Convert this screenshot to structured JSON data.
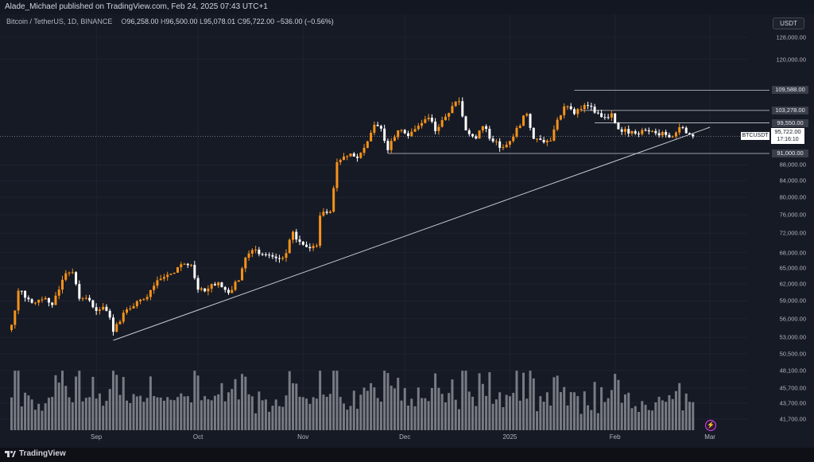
{
  "header": {
    "published_line": "Alade_Michael published on TradingView.com, Feb 24, 2025 07:43 UTC+1"
  },
  "quote": {
    "symbol_line": "Bitcoin / TetherUS, 1D, BINANCE",
    "open_label": "O",
    "open": "96,258.00",
    "high_label": "H",
    "high": "96,500.00",
    "low_label": "L",
    "low": "95,078.01",
    "close_label": "C",
    "close": "95,722.00",
    "change": "−536.00 (−0.56%)"
  },
  "currency_button": "USDT",
  "price_label": {
    "symbol": "BTCUSDT",
    "price": "95,722.00",
    "countdown": "17:16:10"
  },
  "footer": {
    "brand": "TradingView"
  },
  "colors": {
    "background": "#161a25",
    "bull_candle": "#f7931a",
    "bear_candle": "#ffffff",
    "trendline": "#c8cad0",
    "volume_bar": "#9a9ca3",
    "alert": "#e040fb"
  },
  "icons": {
    "logo": "tradingview-logo-icon",
    "alert": "lightning-alert-icon"
  },
  "chart_data": {
    "type": "candlestick",
    "symbol": "BTCUSDT",
    "timeframe": "1D",
    "price_axis": {
      "ticks": [
        41700,
        43700,
        45700,
        48100,
        50500,
        53000,
        56000,
        59000,
        62000,
        65000,
        68000,
        72000,
        76000,
        80000,
        84000,
        88000,
        120000,
        128000
      ],
      "tick_labels": [
        "41,700.00",
        "43,700.00",
        "45,700.00",
        "48,100.00",
        "50,500.00",
        "53,000.00",
        "56,000.00",
        "59,000.00",
        "62,000.00",
        "65,000.00",
        "68,000.00",
        "72,000.00",
        "76,000.00",
        "80,000.00",
        "84,000.00",
        "88,000.00",
        "120,000.00",
        "128,000.00"
      ],
      "log_scale": true,
      "range": [
        40300,
        136000
      ]
    },
    "time_axis": {
      "labels": [
        "Sep",
        "Oct",
        "Nov",
        "Dec",
        "2025",
        "Feb",
        "Mar"
      ],
      "label_dates": [
        "2024-09-01",
        "2024-10-01",
        "2024-11-01",
        "2024-12-01",
        "2025-01-01",
        "2025-02-01",
        "2025-03-01"
      ],
      "range": [
        "2024-08-05",
        "2025-03-12"
      ]
    },
    "grid": true,
    "horizontal_levels": [
      {
        "value": 109588,
        "label": "109,588.00",
        "from": "2025-01-20"
      },
      {
        "value": 103278,
        "label": "103,278.00",
        "from": "2025-01-22"
      },
      {
        "value": 99550,
        "label": "99,550.00",
        "from": "2025-01-26"
      },
      {
        "value": 91000,
        "label": "91,000.00",
        "from": "2024-11-26"
      }
    ],
    "last_price_line": 95722,
    "trendline": {
      "points": [
        [
          "2024-09-06",
          52550
        ],
        [
          "2025-03-01",
          98300
        ]
      ]
    },
    "close_series": {
      "anchors": [
        [
          "2024-08-07",
          55000
        ],
        [
          "2024-08-09",
          60800
        ],
        [
          "2024-08-12",
          59300
        ],
        [
          "2024-08-14",
          58700
        ],
        [
          "2024-08-17",
          59500
        ],
        [
          "2024-08-19",
          58300
        ],
        [
          "2024-08-21",
          61000
        ],
        [
          "2024-08-23",
          64000
        ],
        [
          "2024-08-25",
          64200
        ],
        [
          "2024-08-27",
          59400
        ],
        [
          "2024-08-30",
          59100
        ],
        [
          "2024-09-01",
          57300
        ],
        [
          "2024-09-03",
          58000
        ],
        [
          "2024-09-05",
          56200
        ],
        [
          "2024-09-06",
          53900
        ],
        [
          "2024-09-09",
          57000
        ],
        [
          "2024-09-12",
          58100
        ],
        [
          "2024-09-15",
          59300
        ],
        [
          "2024-09-18",
          61700
        ],
        [
          "2024-09-21",
          63300
        ],
        [
          "2024-09-24",
          64100
        ],
        [
          "2024-09-27",
          65800
        ],
        [
          "2024-09-29",
          65600
        ],
        [
          "2024-10-01",
          61000
        ],
        [
          "2024-10-03",
          60700
        ],
        [
          "2024-10-05",
          62000
        ],
        [
          "2024-10-07",
          62300
        ],
        [
          "2024-10-10",
          60400
        ],
        [
          "2024-10-13",
          62700
        ],
        [
          "2024-10-15",
          67000
        ],
        [
          "2024-10-18",
          68600
        ],
        [
          "2024-10-21",
          67600
        ],
        [
          "2024-10-25",
          66800
        ],
        [
          "2024-10-27",
          67900
        ],
        [
          "2024-10-29",
          72300
        ],
        [
          "2024-10-31",
          70200
        ],
        [
          "2024-11-03",
          68900
        ],
        [
          "2024-11-05",
          69400
        ],
        [
          "2024-11-06",
          75800
        ],
        [
          "2024-11-09",
          76700
        ],
        [
          "2024-11-11",
          88700
        ],
        [
          "2024-11-13",
          90200
        ],
        [
          "2024-11-15",
          91000
        ],
        [
          "2024-11-17",
          89800
        ],
        [
          "2024-11-20",
          94300
        ],
        [
          "2024-11-22",
          99000
        ],
        [
          "2024-11-24",
          97900
        ],
        [
          "2024-11-26",
          91900
        ],
        [
          "2024-11-29",
          97400
        ],
        [
          "2024-12-02",
          95800
        ],
        [
          "2024-12-05",
          98700
        ],
        [
          "2024-12-08",
          101100
        ],
        [
          "2024-12-10",
          97200
        ],
        [
          "2024-12-13",
          101400
        ],
        [
          "2024-12-16",
          106000
        ],
        [
          "2024-12-17",
          106100
        ],
        [
          "2024-12-19",
          97400
        ],
        [
          "2024-12-22",
          95100
        ],
        [
          "2024-12-24",
          98600
        ],
        [
          "2024-12-27",
          94300
        ],
        [
          "2024-12-30",
          92700
        ],
        [
          "2025-01-01",
          94400
        ],
        [
          "2025-01-03",
          98100
        ],
        [
          "2025-01-06",
          102200
        ],
        [
          "2025-01-08",
          95000
        ],
        [
          "2025-01-10",
          94700
        ],
        [
          "2025-01-13",
          94500
        ],
        [
          "2025-01-15",
          100500
        ],
        [
          "2025-01-17",
          104500
        ],
        [
          "2025-01-20",
          102200
        ],
        [
          "2025-01-22",
          103700
        ],
        [
          "2025-01-24",
          104700
        ],
        [
          "2025-01-26",
          102600
        ],
        [
          "2025-01-28",
          101300
        ],
        [
          "2025-01-31",
          102400
        ],
        [
          "2025-02-02",
          97700
        ],
        [
          "2025-02-04",
          97800
        ],
        [
          "2025-02-07",
          96500
        ],
        [
          "2025-02-10",
          97400
        ],
        [
          "2025-02-13",
          96600
        ],
        [
          "2025-02-16",
          96100
        ],
        [
          "2025-02-18",
          95700
        ],
        [
          "2025-02-20",
          98300
        ],
        [
          "2025-02-22",
          96600
        ],
        [
          "2025-02-23",
          96258
        ],
        [
          "2025-02-24",
          95722
        ]
      ]
    },
    "last_candle": {
      "date": "2025-02-24",
      "open": 96258,
      "high": 96500,
      "low": 95078.01,
      "close": 95722
    },
    "volume": {
      "shown": true,
      "scale": "relative"
    }
  }
}
